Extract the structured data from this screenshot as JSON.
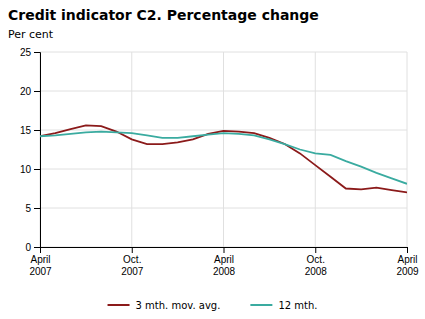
{
  "chart_data": {
    "type": "line",
    "title": "Credit indicator C2. Percentage change",
    "ylabel": "Per cent",
    "categories": [
      "April\n2007",
      null,
      null,
      null,
      null,
      null,
      "Oct.\n2007",
      null,
      null,
      null,
      null,
      null,
      "April\n2008",
      null,
      null,
      null,
      null,
      null,
      "Oct.\n2008",
      null,
      null,
      null,
      null,
      null,
      "April\n2009"
    ],
    "series": [
      {
        "name": "3 mth. mov. avg.",
        "color": "#8B1A1A",
        "values": [
          14.2,
          14.6,
          15.1,
          15.6,
          15.5,
          14.8,
          13.8,
          13.2,
          13.2,
          13.4,
          13.8,
          14.5,
          14.9,
          14.8,
          14.6,
          14.0,
          13.2,
          12.0,
          10.5,
          9.0,
          7.5,
          7.4,
          7.6,
          7.3,
          7.0
        ]
      },
      {
        "name": "12 mth.",
        "color": "#3AABA0",
        "values": [
          14.2,
          14.3,
          14.5,
          14.7,
          14.8,
          14.7,
          14.6,
          14.3,
          14.0,
          14.0,
          14.2,
          14.4,
          14.6,
          14.5,
          14.3,
          13.8,
          13.2,
          12.5,
          12.0,
          11.8,
          11.0,
          10.3,
          9.5,
          8.8,
          8.1
        ]
      }
    ],
    "ylim": [
      0,
      25
    ],
    "yticks": [
      0,
      5,
      10,
      15,
      20,
      25
    ],
    "grid": true,
    "legend": "bottom"
  }
}
